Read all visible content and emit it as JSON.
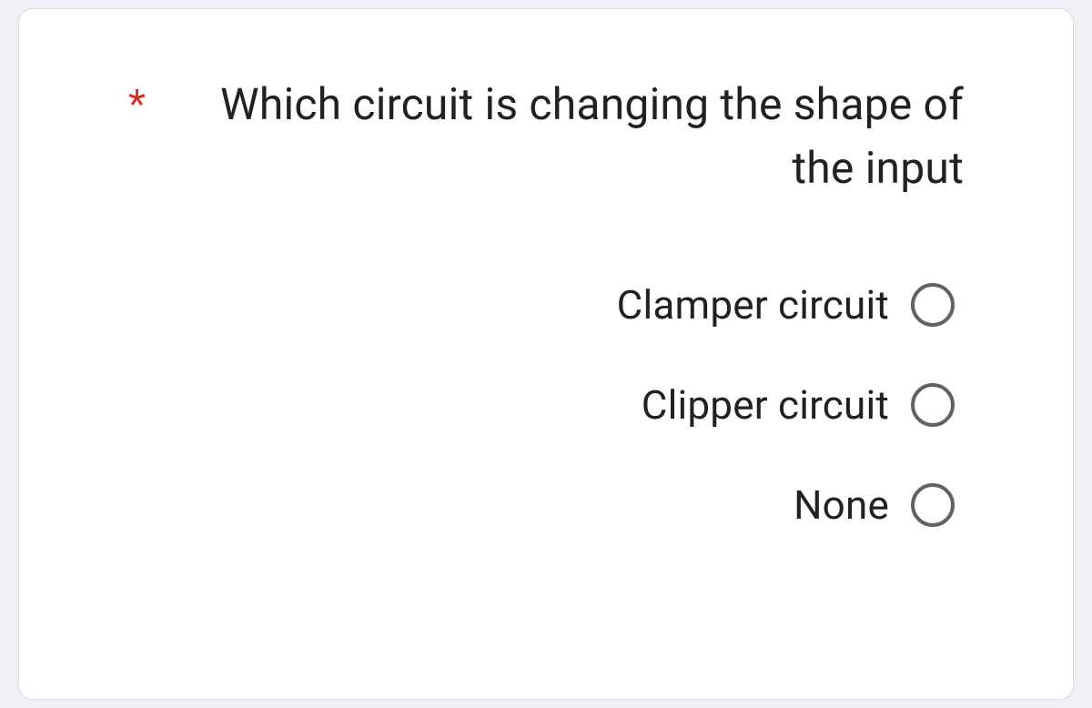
{
  "question": {
    "required_marker": "*",
    "text": "Which circuit is changing the shape of the input",
    "options": [
      {
        "label": "Clamper circuit"
      },
      {
        "label": "Clipper circuit"
      },
      {
        "label": "None"
      }
    ]
  },
  "colors": {
    "background": "#f1eff5",
    "card_background": "#ffffff",
    "card_border": "#dadce0",
    "text": "#202124",
    "required": "#d93025",
    "radio_border": "#5f6368"
  }
}
